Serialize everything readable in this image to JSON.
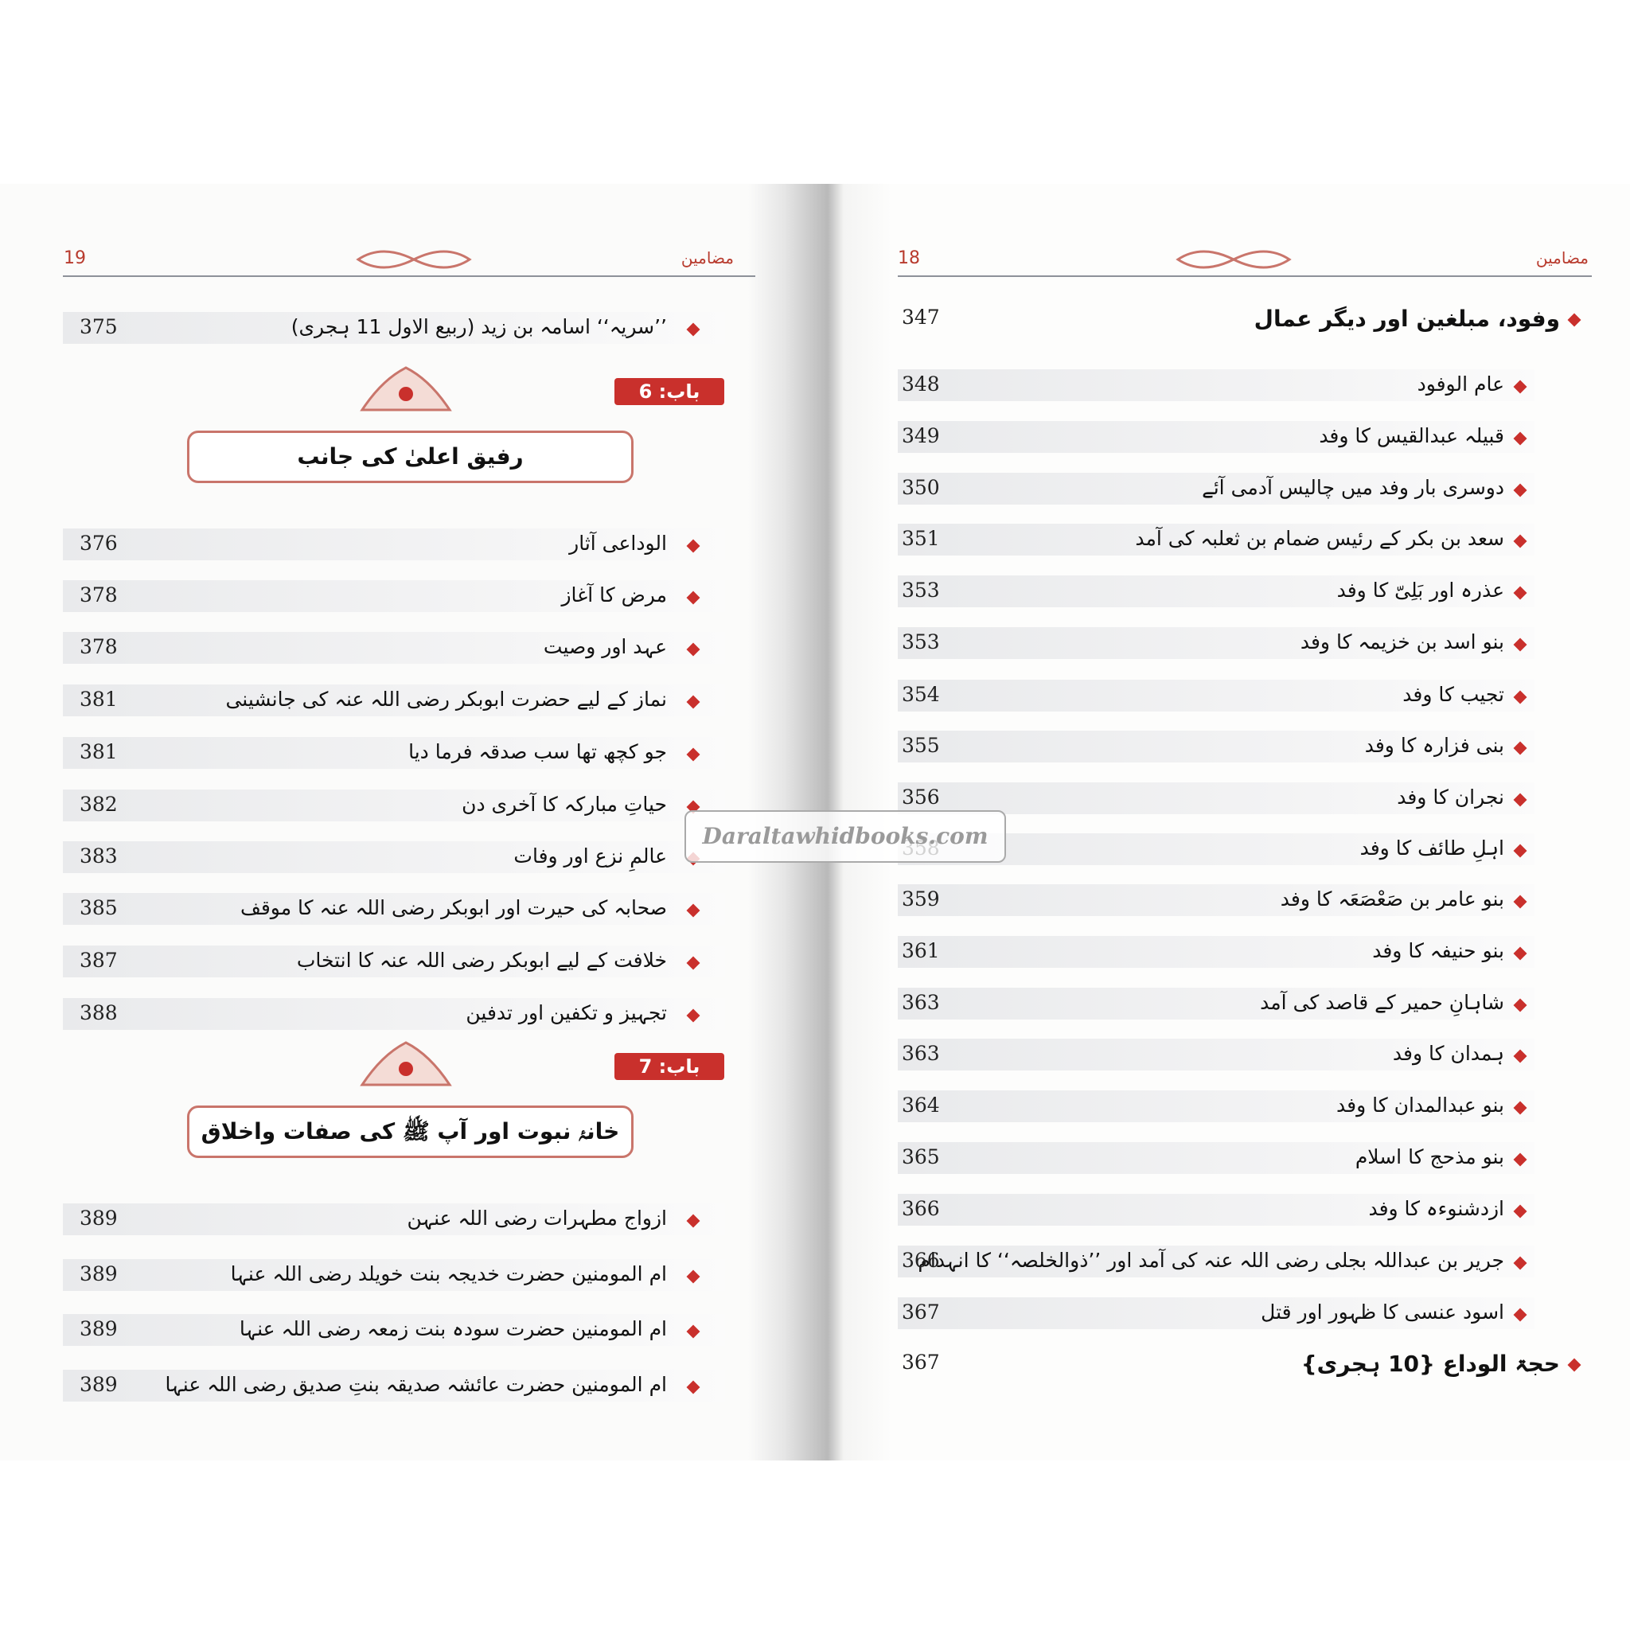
{
  "left_page": {
    "page_number": "19",
    "header": "مضامین",
    "top_entry": {
      "title": "’’سریہ‘‘ اسامہ بن زید (ربیع الاول 11 ہجری)",
      "page": "375"
    },
    "chapters": [
      {
        "label": "باب: 6",
        "title": "رفیق اعلیٰ کی جانب",
        "entries": [
          {
            "title": "الوداعی آثار",
            "page": "376"
          },
          {
            "title": "مرض کا آغاز",
            "page": "378"
          },
          {
            "title": "عہد اور وصیت",
            "page": "378"
          },
          {
            "title": "نماز کے لیے حضرت ابوبکر رضی اللہ عنہ کی جانشینی",
            "page": "381"
          },
          {
            "title": "جو کچھ تھا سب صدقہ فرما دیا",
            "page": "381"
          },
          {
            "title": "حیاتِ مبارکہ کا آخری دن",
            "page": "382"
          },
          {
            "title": "عالمِ نزع اور وفات",
            "page": "383"
          },
          {
            "title": "صحابہ کی حیرت اور ابوبکر رضی اللہ عنہ کا موقف",
            "page": "385"
          },
          {
            "title": "خلافت کے لیے ابوبکر رضی اللہ عنہ کا انتخاب",
            "page": "387"
          },
          {
            "title": "تجہیز و تکفین اور تدفین",
            "page": "388"
          }
        ]
      },
      {
        "label": "باب: 7",
        "title": "خانۂ نبوت اور آپ ﷺ کی صفات واخلاق",
        "entries": [
          {
            "title": "ازواج مطہرات رضی اللہ عنہن",
            "page": "389"
          },
          {
            "title": "ام المومنین حضرت خدیجہ بنت خویلد رضی اللہ عنہا",
            "page": "389"
          },
          {
            "title": "ام المومنین حضرت سودہ بنت زمعہ رضی اللہ عنہا",
            "page": "389"
          },
          {
            "title": "ام المومنین حضرت عائشہ صدیقہ بنتِ صدیق رضی اللہ عنہا",
            "page": "389"
          }
        ]
      }
    ]
  },
  "right_page": {
    "page_number": "18",
    "header": "مضامین",
    "sections": [
      {
        "title": "وفود، مبلغین اور دیگر عمال",
        "page": "347",
        "entries": [
          {
            "title": "عام الوفود",
            "page": "348"
          },
          {
            "title": "قبیلہ عبدالقیس کا وفد",
            "page": "349"
          },
          {
            "title": "دوسری بار وفد میں چالیس آدمی آئے",
            "page": "350"
          },
          {
            "title": "سعد بن بکر کے رئیس ضمام بن ثعلبہ کی آمد",
            "page": "351"
          },
          {
            "title": "عذرہ اور بَلِیّ کا وفد",
            "page": "353"
          },
          {
            "title": "بنو اسد بن خزیمہ کا وفد",
            "page": "353"
          },
          {
            "title": "تجیب کا وفد",
            "page": "354"
          },
          {
            "title": "بنی فزارہ کا وفد",
            "page": "355"
          },
          {
            "title": "نجران کا وفد",
            "page": "356"
          },
          {
            "title": "اہلِ طائف کا وفد",
            "page": "358"
          },
          {
            "title": "بنو عامر بن صَعْصَعَہ کا وفد",
            "page": "359"
          },
          {
            "title": "بنو حنیفہ کا وفد",
            "page": "361"
          },
          {
            "title": "شاہانِ حمیر کے قاصد کی آمد",
            "page": "363"
          },
          {
            "title": "ہمدان کا وفد",
            "page": "363"
          },
          {
            "title": "بنو عبدالمدان کا وفد",
            "page": "364"
          },
          {
            "title": "بنو مذحج کا اسلام",
            "page": "365"
          },
          {
            "title": "ازدشنوءہ کا وفد",
            "page": "366"
          },
          {
            "title": "جریر بن عبداللہ بجلی رضی اللہ عنہ کی آمد اور ’’ذوالخلصہ‘‘ کا انہدام",
            "page": "366"
          },
          {
            "title": "اسود عنسی کا ظہور اور قتل",
            "page": "367"
          }
        ]
      },
      {
        "title": "حجۃ الوداع {10 ہجری}",
        "page": "367",
        "entries": []
      }
    ]
  },
  "watermark": "Daraltawhidbooks.com"
}
